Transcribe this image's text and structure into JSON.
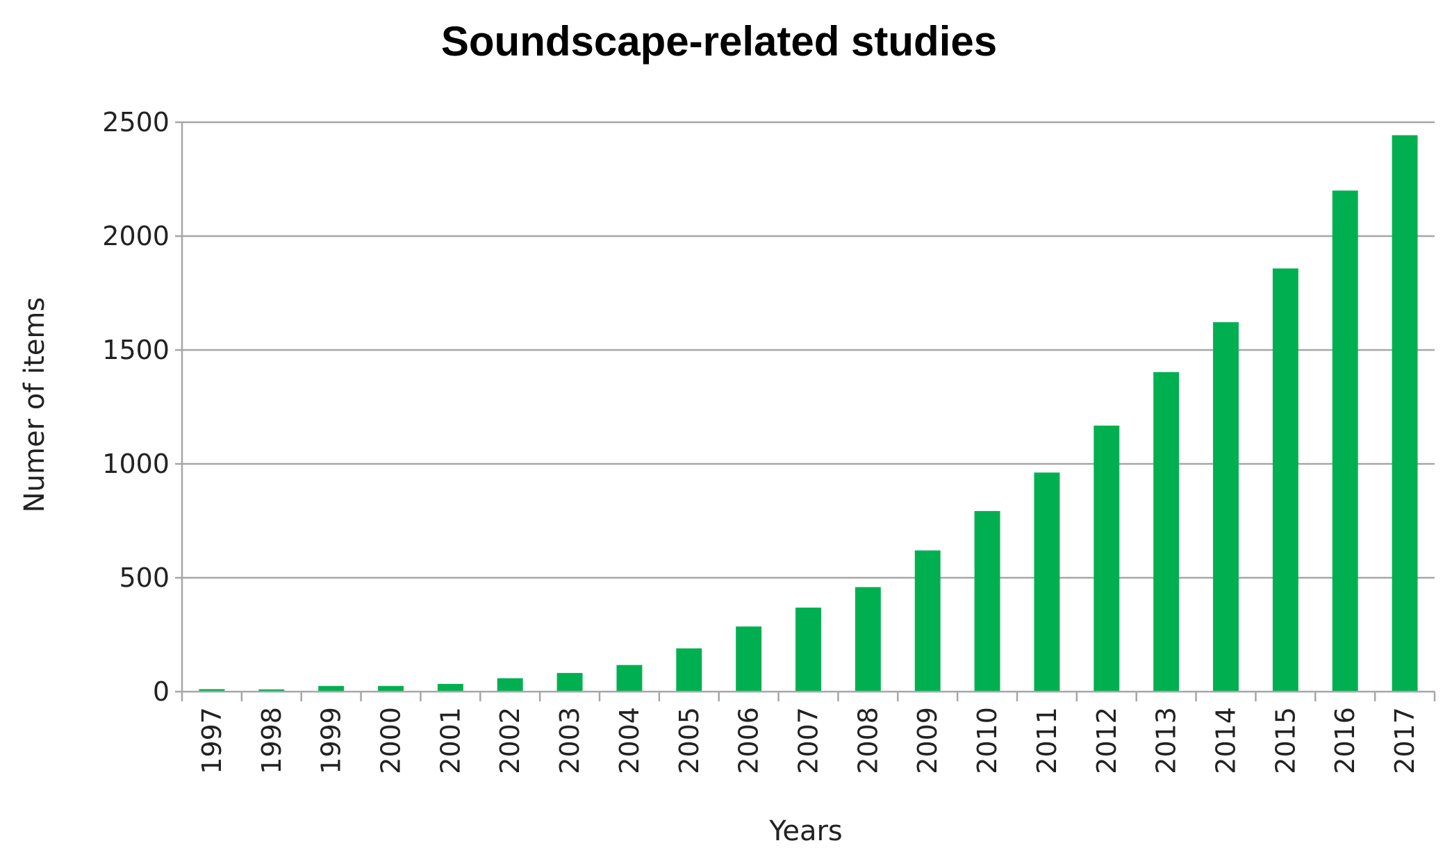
{
  "chart_data": {
    "type": "bar",
    "title": "Soundscape-related studies",
    "xlabel": "Years",
    "ylabel": "Numer of items",
    "categories": [
      "1997",
      "1998",
      "1999",
      "2000",
      "2001",
      "2002",
      "2003",
      "2004",
      "2005",
      "2006",
      "2007",
      "2008",
      "2009",
      "2010",
      "2011",
      "2012",
      "2013",
      "2014",
      "2015",
      "2016",
      "2017"
    ],
    "values": [
      11,
      10,
      25,
      25,
      34,
      59,
      82,
      117,
      190,
      286,
      369,
      459,
      620,
      793,
      962,
      1168,
      1403,
      1622,
      1858,
      2200,
      2443
    ],
    "ylim": [
      0,
      2500
    ],
    "yticks": [
      "0",
      "500",
      "1000",
      "1500",
      "2000",
      "2500"
    ],
    "grid": true,
    "legend": "none",
    "bar_color": "#00b050"
  }
}
